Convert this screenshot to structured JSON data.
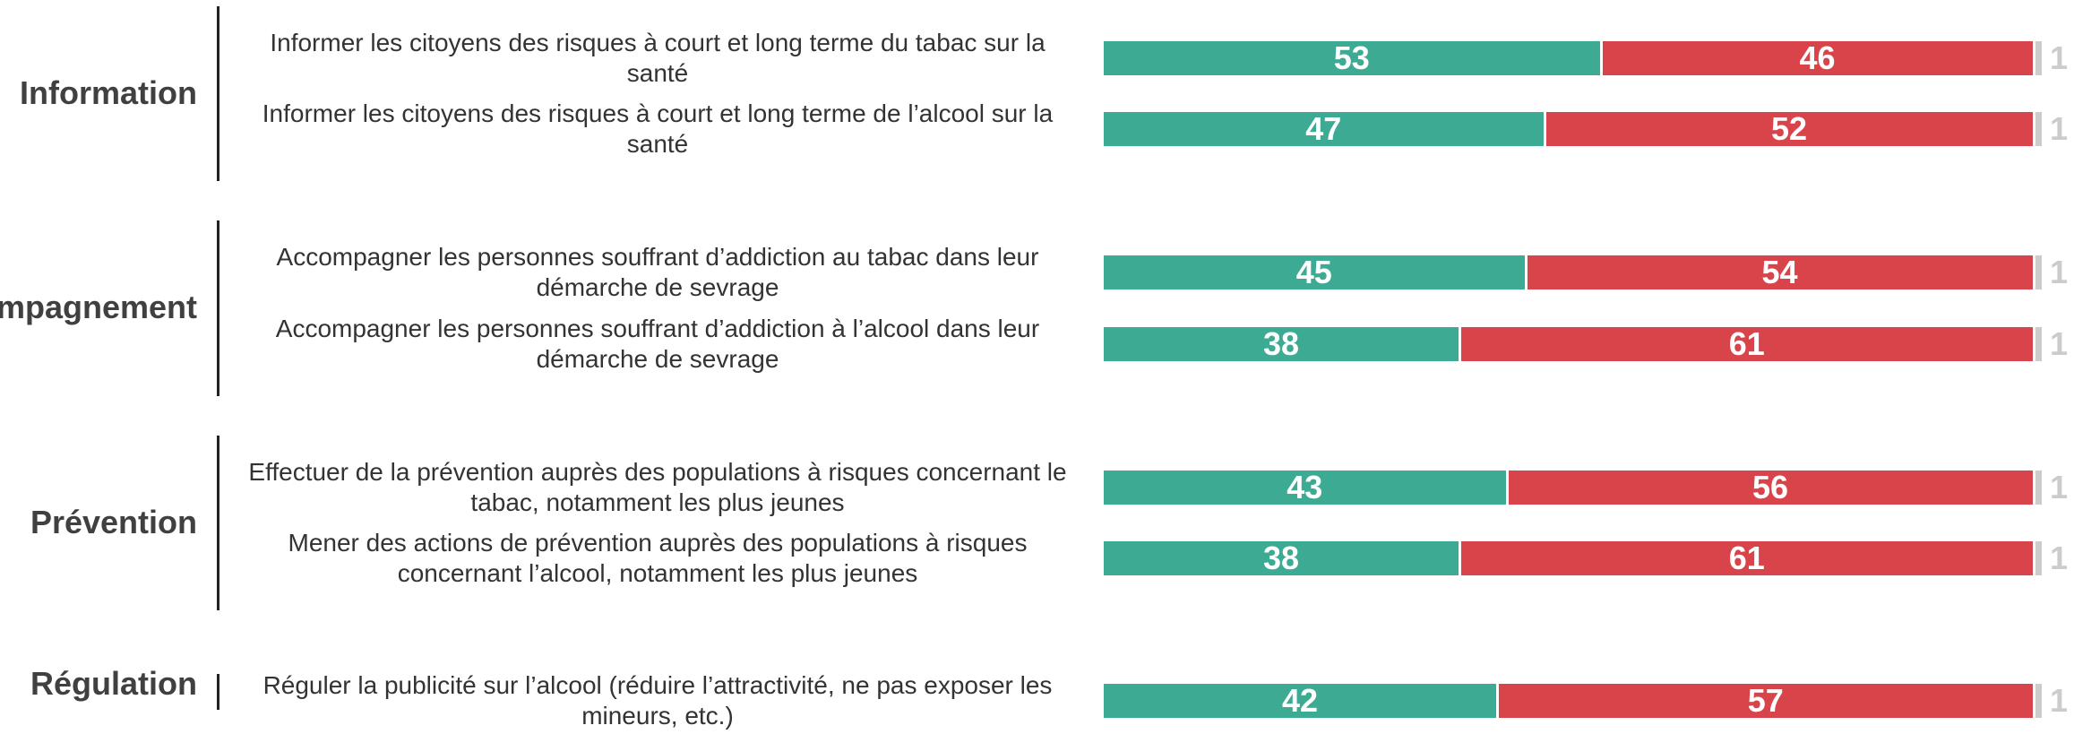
{
  "chart_data": {
    "type": "bar",
    "orientation": "horizontal",
    "stacked": true,
    "xlim": [
      0,
      100
    ],
    "groups": [
      {
        "label": "Information",
        "items": [
          "Informer les citoyens des risques à court et long terme du tabac sur la santé",
          "Informer les citoyens des risques à court et long terme de l’alcool sur la santé"
        ]
      },
      {
        "label": "Accompagnement",
        "items": [
          "Accompagner les personnes souffrant d’addiction au tabac dans leur démarche de sevrage",
          "Accompagner les personnes souffrant d’addiction à l’alcool dans leur démarche de sevrage"
        ]
      },
      {
        "label": "Prévention",
        "items": [
          "Effectuer de la prévention auprès des populations à risques concernant le tabac, notamment les plus jeunes",
          "Mener des actions de prévention auprès des populations à risques concernant l’alcool, notamment les plus jeunes"
        ]
      },
      {
        "label": "Régulation",
        "items": [
          "Réguler la publicité sur l’alcool (réduire l’attractivité, ne pas exposer les mineurs, etc.)"
        ]
      }
    ],
    "series": [
      {
        "color": "#3daa94",
        "values": [
          53,
          47,
          45,
          38,
          43,
          38,
          42
        ]
      },
      {
        "color": "#d9444b",
        "values": [
          46,
          52,
          54,
          61,
          56,
          61,
          57
        ]
      },
      {
        "color": "#cccccc",
        "values": [
          1,
          1,
          1,
          1,
          1,
          1,
          1
        ]
      }
    ]
  }
}
